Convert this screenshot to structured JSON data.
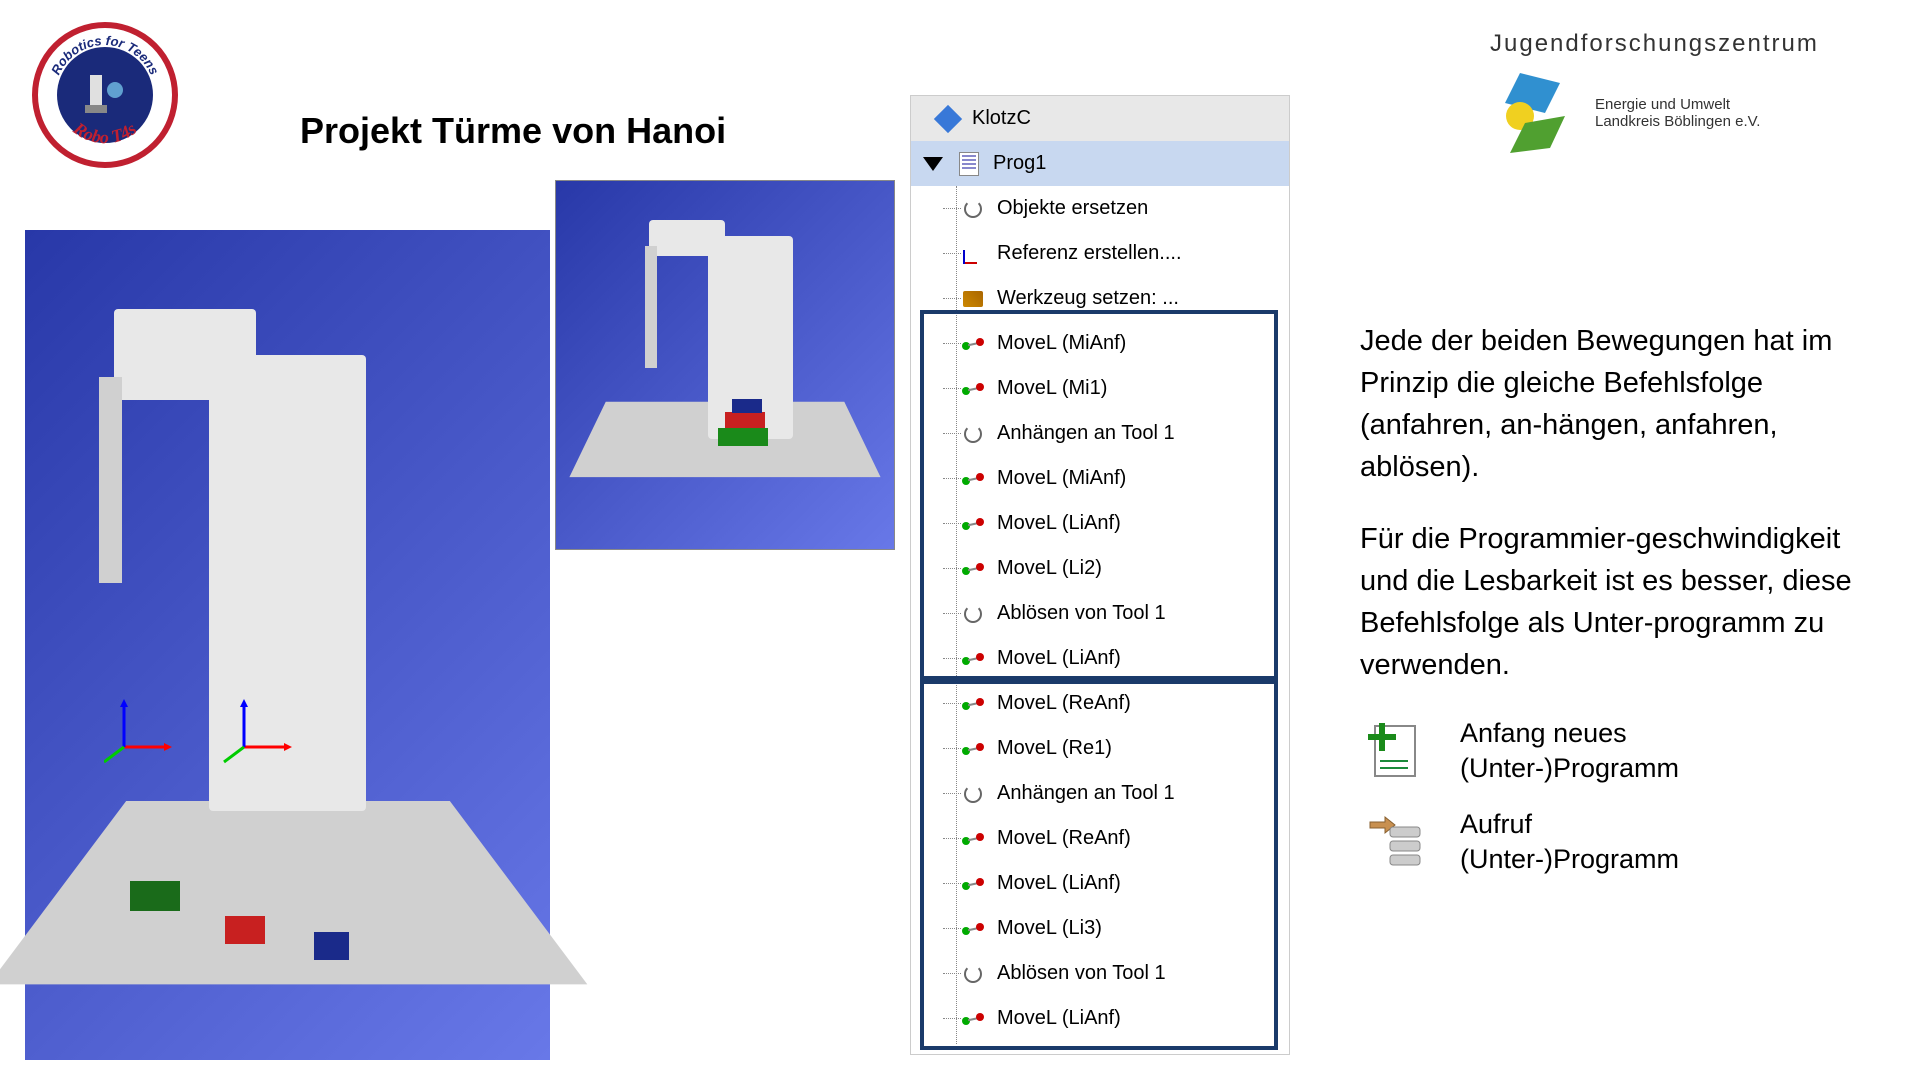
{
  "title": "Projekt Türme von Hanoi",
  "logo_left": {
    "top_text": "Robotics for Teens",
    "bottom_text": "Robo T4s",
    "circle_border": "#c02030",
    "bg": "#1a2a7a"
  },
  "logo_right": {
    "title": "Jugendforschungszentrum",
    "sub1": "Energie und Umwelt",
    "sub2": "Landkreis Böblingen e.V.",
    "color_blue": "#3090d0",
    "color_yellow": "#f0d020",
    "color_green": "#50a030"
  },
  "tree": {
    "root": "KlotzC",
    "prog": "Prog1",
    "items": [
      {
        "icon": "refresh",
        "label": "Objekte ersetzen"
      },
      {
        "icon": "axis",
        "label": "Referenz erstellen...."
      },
      {
        "icon": "tool",
        "label": "Werkzeug setzen: ..."
      },
      {
        "icon": "move",
        "label": "MoveL (MiAnf)"
      },
      {
        "icon": "move",
        "label": "MoveL (Mi1)"
      },
      {
        "icon": "refresh",
        "label": "Anhängen an Tool 1"
      },
      {
        "icon": "move",
        "label": "MoveL (MiAnf)"
      },
      {
        "icon": "move",
        "label": "MoveL (LiAnf)"
      },
      {
        "icon": "move",
        "label": "MoveL (Li2)"
      },
      {
        "icon": "refresh",
        "label": "Ablösen von Tool 1"
      },
      {
        "icon": "move",
        "label": "MoveL (LiAnf)"
      },
      {
        "icon": "move",
        "label": "MoveL (ReAnf)"
      },
      {
        "icon": "move",
        "label": "MoveL (Re1)"
      },
      {
        "icon": "refresh",
        "label": "Anhängen an Tool 1"
      },
      {
        "icon": "move",
        "label": "MoveL (ReAnf)"
      },
      {
        "icon": "move",
        "label": "MoveL (LiAnf)"
      },
      {
        "icon": "move",
        "label": "MoveL (Li3)"
      },
      {
        "icon": "refresh",
        "label": "Ablösen von Tool 1"
      },
      {
        "icon": "move",
        "label": "MoveL (LiAnf)"
      }
    ]
  },
  "paragraphs": {
    "p1": "Jede der beiden Bewegungen hat im Prinzip die gleiche Befehlsfolge (anfahren, an-hängen, anfahren, ablösen).",
    "p2": "Für die Programmier-geschwindigkeit und die Lesbarkeit ist es besser, diese Befehlsfolge als Unter-programm zu verwenden."
  },
  "icons": {
    "new_prog": {
      "line1": "Anfang neues",
      "line2": "(Unter-)Programm"
    },
    "call_prog": {
      "line1": "Aufruf",
      "line2": "(Unter-)Programm"
    }
  },
  "colors": {
    "box_border": "#1a3a6a",
    "tree_selected_bg": "#c8d8f0",
    "viewport_bg_start": "#2838a8",
    "viewport_bg_end": "#6878e8",
    "block_green": "#1a6b1a",
    "block_red": "#c82020",
    "block_blue": "#1a2a8a"
  }
}
